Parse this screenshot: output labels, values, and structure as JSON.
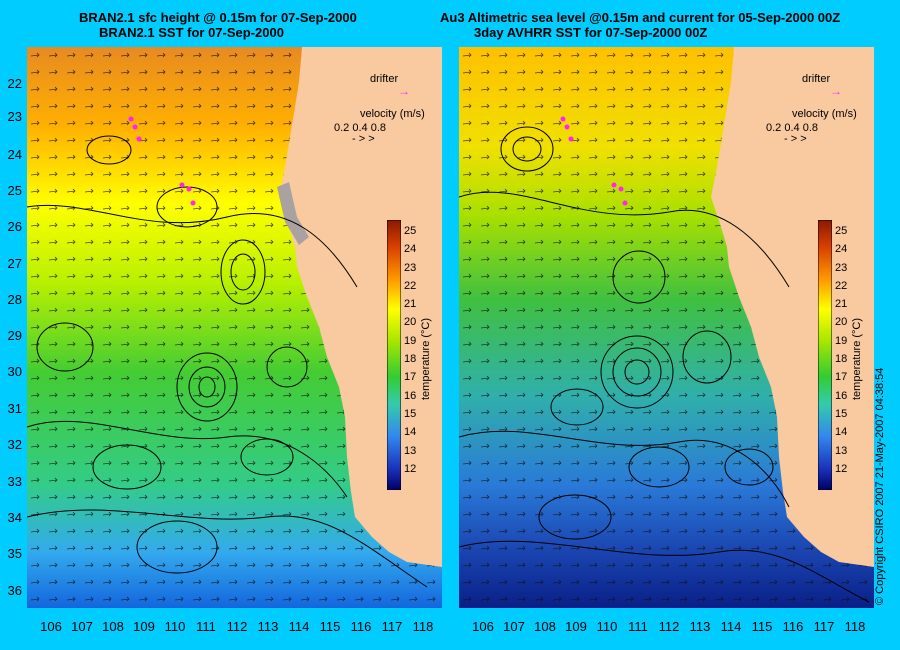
{
  "left_panel": {
    "title_line1": "BRAN2.1 sfc height @ 0.15m for 07-Sep-2000",
    "title_line2": "BRAN2.1 SST for 07-Sep-2000"
  },
  "right_panel": {
    "title_line1": "Au3 Altimetric sea level  @0.15m and current for 05-Sep-2000 00Z",
    "title_line2": "3day AVHRR SST for 07-Sep-2000 00Z"
  },
  "legend": {
    "drifter_label": "drifter",
    "velocity_label": "velocity (m/s)",
    "velocity_scale": [
      "0.2",
      "0.4",
      "0.8"
    ]
  },
  "colorbar": {
    "label": "temperature (°C)",
    "ticks": [
      "25",
      "24",
      "23",
      "22",
      "21",
      "20",
      "19",
      "18",
      "17",
      "16",
      "15",
      "14",
      "13",
      "12"
    ],
    "min": 11.5,
    "max": 25.5
  },
  "axes": {
    "latitudes": [
      "22",
      "23",
      "24",
      "25",
      "26",
      "27",
      "28",
      "29",
      "30",
      "31",
      "32",
      "33",
      "34",
      "35",
      "36"
    ],
    "longitudes": [
      "106",
      "107",
      "108",
      "109",
      "110",
      "111",
      "112",
      "113",
      "114",
      "115",
      "116",
      "117",
      "118"
    ]
  },
  "copyright": "© Copyright CSIRO 2007    21-May-2007 04:38:54",
  "colors": {
    "background": "#00ccff",
    "land": "#f9c9a0",
    "drifter": "#ff22ff"
  }
}
